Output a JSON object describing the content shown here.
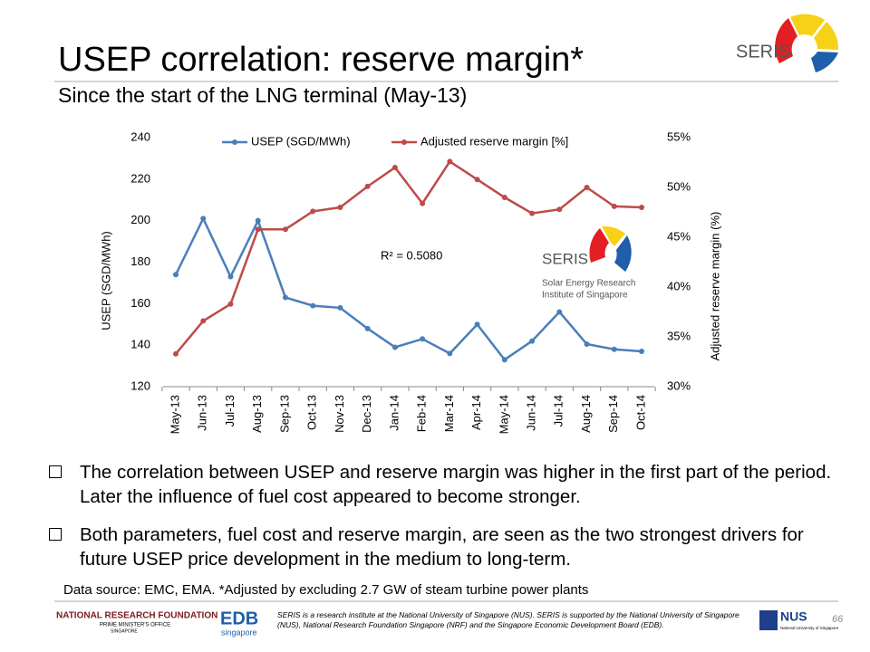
{
  "header": {
    "title": "USEP correlation: reserve margin*",
    "subtitle": "Since the start of the LNG terminal (May-13)"
  },
  "chart_data": {
    "type": "line",
    "categories": [
      "May-13",
      "Jun-13",
      "Jul-13",
      "Aug-13",
      "Sep-13",
      "Oct-13",
      "Nov-13",
      "Dec-13",
      "Jan-14",
      "Feb-14",
      "Mar-14",
      "Apr-14",
      "May-14",
      "Jun-14",
      "Jul-14",
      "Aug-14",
      "Sep-14",
      "Oct-14"
    ],
    "series": [
      {
        "name": "USEP (SGD/MWh)",
        "color": "#4a7ebb",
        "values": [
          174,
          201,
          173,
          200,
          163,
          159,
          158,
          148,
          139,
          143,
          136,
          150,
          133,
          142,
          156,
          140.5,
          138,
          137
        ]
      },
      {
        "name": "Adjusted reserve margin [%]",
        "color": "#be4b48",
        "axis": "y2",
        "values": [
          33.3,
          36.6,
          38.3,
          45.8,
          45.8,
          47.6,
          48.0,
          50.1,
          52.0,
          48.4,
          52.6,
          50.8,
          49.0,
          47.4,
          47.8,
          50.0,
          48.1,
          48.0
        ]
      }
    ],
    "ylabel": "USEP (SGD/MWh)",
    "y2label": "Adjusted reserve margin (%)",
    "ylim": [
      120,
      240
    ],
    "yticks": [
      120,
      140,
      160,
      180,
      200,
      220,
      240
    ],
    "y2lim": [
      30,
      55
    ],
    "y2ticks": [
      {
        "value": 30,
        "label": "30%"
      },
      {
        "value": 35,
        "label": "35%"
      },
      {
        "value": 40,
        "label": "40%"
      },
      {
        "value": 45,
        "label": "45%"
      },
      {
        "value": 50,
        "label": "50%"
      },
      {
        "value": 55,
        "label": "55%"
      }
    ],
    "annotation": "R² = 0.5080",
    "legend": "top"
  },
  "chart_logo": {
    "name": "SERIS",
    "line1": "Solar Energy Research",
    "line2": "Institute of Singapore"
  },
  "bullets": [
    "The correlation between USEP and reserve margin was higher in the first part of the period. Later the influence of fuel cost appeared to become stronger.",
    "Both parameters, fuel cost and reserve margin, are seen as the two strongest drivers for future USEP price development in the medium to long-term."
  ],
  "source": "Data source: EMC, EMA. *Adjusted by excluding 2.7 GW of steam turbine power plants",
  "footer": {
    "logo": "SERIS",
    "nrf1": "NATIONAL RESEARCH FOUNDATION",
    "nrf2": "PRIME MINISTER'S OFFICE",
    "nrf3": "SINGAPORE",
    "edb1": "EDB",
    "edb2": "singapore",
    "note": "SERIS is a research institute at the National University of Singapore (NUS). SERIS is supported by the National University of Singapore (NUS), National Research Foundation Singapore (NRF) and the Singapore Economic Development Board (EDB).",
    "nus1": "NUS",
    "nus2": "National University of Singapore",
    "page": "66"
  }
}
